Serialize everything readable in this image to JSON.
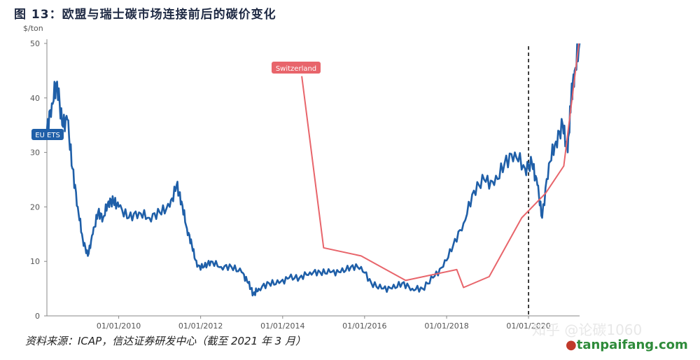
{
  "figure": {
    "title": "图 13：欧盟与瑞士碳市场连接前后的碳价变化",
    "source": "资料来源：ICAP，信达证券研发中心（截至 2021 年 3 月）",
    "watermark": "知乎 @论碳1060",
    "logo_main": "tanpaifang.com",
    "logo_prefix": "●",
    "colors": {
      "eu": "#1f5fa8",
      "ch": "#e8656b",
      "axis": "#888888",
      "dashed": "#111111",
      "grid": "#e6e6e6"
    }
  },
  "chart_data": {
    "type": "line",
    "ylabel": "$/ton",
    "ylim": [
      0,
      50
    ],
    "yticks": [
      0,
      10,
      20,
      30,
      40,
      50
    ],
    "xlim": [
      "2008-04-01",
      "2021-03-31"
    ],
    "xticks": [
      "01/01/2010",
      "01/01/2012",
      "01/01/2014",
      "01/01/2016",
      "01/01/2018",
      "01/01/2020"
    ],
    "vline": "2020-01-01",
    "series": [
      {
        "name": "EU ETS",
        "x": [
          "2008-04-01",
          "2008-05-15",
          "2008-07-01",
          "2008-08-15",
          "2008-10-01",
          "2008-11-15",
          "2009-01-01",
          "2009-02-15",
          "2009-04-01",
          "2009-05-15",
          "2009-07-01",
          "2009-08-15",
          "2009-10-01",
          "2009-11-15",
          "2010-01-01",
          "2010-04-01",
          "2010-07-01",
          "2010-10-01",
          "2011-01-01",
          "2011-04-01",
          "2011-06-01",
          "2011-07-15",
          "2011-09-01",
          "2011-10-15",
          "2011-12-01",
          "2012-02-01",
          "2012-04-01",
          "2012-07-01",
          "2012-10-01",
          "2013-01-01",
          "2013-03-01",
          "2013-04-15",
          "2013-06-01",
          "2013-09-01",
          "2013-12-01",
          "2014-03-01",
          "2014-06-01",
          "2014-09-01",
          "2014-12-01",
          "2015-03-01",
          "2015-06-01",
          "2015-09-01",
          "2015-12-01",
          "2016-03-01",
          "2016-06-01",
          "2016-09-01",
          "2016-12-01",
          "2017-03-01",
          "2017-06-01",
          "2017-09-01",
          "2017-12-01",
          "2018-03-01",
          "2018-06-01",
          "2018-09-01",
          "2018-12-01",
          "2019-03-01",
          "2019-06-01",
          "2019-09-01",
          "2019-12-01",
          "2020-02-01",
          "2020-03-20",
          "2020-05-01",
          "2020-07-01",
          "2020-09-01",
          "2020-11-01",
          "2020-12-15",
          "2021-01-15",
          "2021-02-15",
          "2021-03-31"
        ],
        "values": [
          34,
          39,
          43,
          35,
          36,
          27,
          20,
          14,
          11,
          15,
          19,
          18,
          21,
          21,
          20,
          18,
          19,
          18,
          19,
          20,
          24,
          21,
          16,
          13,
          9,
          9,
          10,
          9,
          9,
          8,
          6,
          4,
          5,
          6,
          6,
          7,
          7,
          8,
          8,
          8,
          8,
          9,
          9,
          6,
          5,
          5,
          6,
          5,
          5,
          7,
          9,
          13,
          17,
          23,
          25,
          24,
          28,
          30,
          27,
          28,
          24,
          18,
          28,
          32,
          35,
          30,
          40,
          45,
          50
        ]
      },
      {
        "name": "Switzerland",
        "x": [
          "2014-06-20",
          "2015-01-01",
          "2015-12-01",
          "2017-01-01",
          "2018-04-01",
          "2018-06-01",
          "2019-01-15",
          "2019-11-01",
          "2020-06-01",
          "2020-11-10",
          "2021-03-25"
        ],
        "values": [
          44,
          12.5,
          11,
          6.5,
          8.5,
          5.2,
          7.2,
          18,
          22.5,
          27.5,
          50
        ]
      }
    ]
  }
}
